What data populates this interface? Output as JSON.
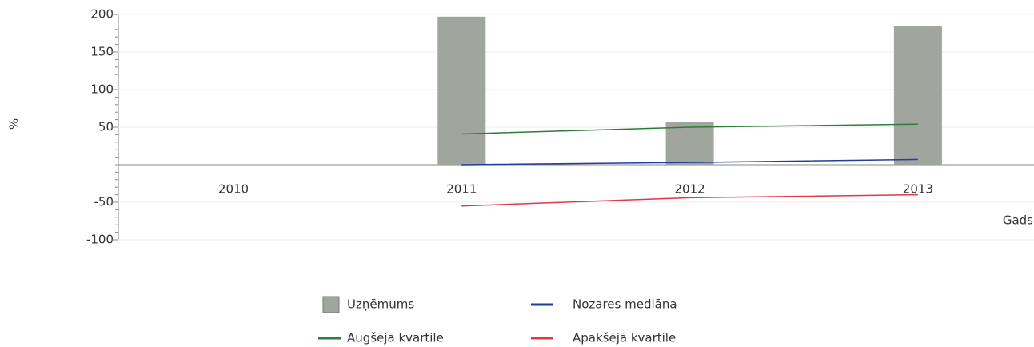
{
  "chart_data": {
    "type": "bar",
    "y_label": "%",
    "x_label": "Gads",
    "categories": [
      "2010",
      "2011",
      "2012",
      "2013"
    ],
    "series": [
      {
        "name": "Uzņēmums",
        "type": "bar",
        "color": "#a0a59d",
        "values": [
          null,
          197,
          57,
          184
        ]
      },
      {
        "name": "Nozares mediāna",
        "type": "line",
        "color": "#1f3f9f",
        "values": [
          null,
          0,
          3,
          7
        ]
      },
      {
        "name": "Augšējā kvartile",
        "type": "line",
        "color": "#2e7d3a",
        "values": [
          null,
          41,
          50,
          54
        ]
      },
      {
        "name": "Apakšējā kvartile",
        "type": "line",
        "color": "#e03a45",
        "values": [
          null,
          -55,
          -44,
          -40
        ]
      }
    ],
    "ylim": [
      -100,
      200
    ],
    "yticks": [
      -100,
      -50,
      50,
      100,
      150,
      200
    ],
    "grid": true
  }
}
